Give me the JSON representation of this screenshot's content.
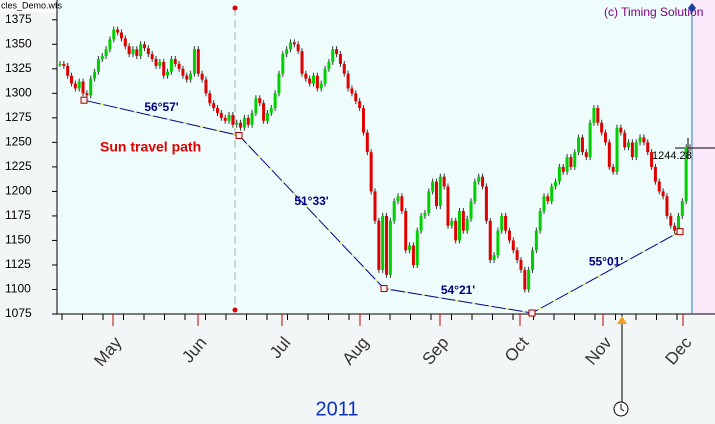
{
  "file_label": "cles_Demo.wts",
  "copyright": "(c) Timing Solution",
  "chart_data": {
    "type": "price-bars",
    "ylim": [
      1075,
      1387
    ],
    "yticks": [
      1075,
      1100,
      1125,
      1150,
      1175,
      1200,
      1225,
      1250,
      1275,
      1300,
      1325,
      1350,
      1375
    ],
    "months": [
      "May",
      "Jun",
      "Jul",
      "Aug",
      "Sep",
      "Oct",
      "Nov",
      "Dec"
    ],
    "year": "2011",
    "up_color": "#00d000",
    "down_color": "#e00000",
    "values": [
      1330,
      1328,
      1318,
      1310,
      1305,
      1312,
      1300,
      1298,
      1315,
      1322,
      1335,
      1338,
      1345,
      1355,
      1365,
      1362,
      1356,
      1348,
      1340,
      1345,
      1338,
      1350,
      1346,
      1340,
      1335,
      1328,
      1332,
      1318,
      1322,
      1335,
      1330,
      1325,
      1318,
      1314,
      1320,
      1345,
      1320,
      1314,
      1300,
      1290,
      1285,
      1280,
      1275,
      1272,
      1278,
      1268,
      1270,
      1265,
      1275,
      1268,
      1280,
      1295,
      1290,
      1272,
      1280,
      1285,
      1300,
      1320,
      1340,
      1345,
      1352,
      1350,
      1343,
      1320,
      1315,
      1310,
      1318,
      1305,
      1310,
      1325,
      1332,
      1345,
      1340,
      1330,
      1320,
      1305,
      1300,
      1292,
      1285,
      1260,
      1240,
      1200,
      1170,
      1120,
      1175,
      1115,
      1170,
      1190,
      1195,
      1180,
      1140,
      1145,
      1125,
      1160,
      1175,
      1178,
      1200,
      1210,
      1185,
      1215,
      1205,
      1165,
      1170,
      1150,
      1180,
      1160,
      1172,
      1190,
      1210,
      1215,
      1205,
      1170,
      1130,
      1135,
      1160,
      1175,
      1160,
      1150,
      1140,
      1130,
      1120,
      1100,
      1120,
      1140,
      1160,
      1180,
      1195,
      1190,
      1205,
      1210,
      1225,
      1220,
      1235,
      1225,
      1240,
      1255,
      1240,
      1235,
      1270,
      1285,
      1270,
      1260,
      1250,
      1225,
      1220,
      1265,
      1260,
      1245,
      1250,
      1235,
      1250,
      1255,
      1250,
      1240,
      1225,
      1210,
      1200,
      1195,
      1175,
      1165,
      1160,
      1175,
      1190,
      1245,
      1244.28
    ],
    "last_price": {
      "value": 1244.28,
      "label": "1244.28"
    },
    "sun_path": {
      "name": "Sun travel path",
      "color": "#000080",
      "points": [
        1293,
        1257,
        1101,
        1076,
        1159
      ],
      "angles": [
        "56°57'",
        "51°33'",
        "54°21'",
        "55°01'"
      ]
    }
  }
}
